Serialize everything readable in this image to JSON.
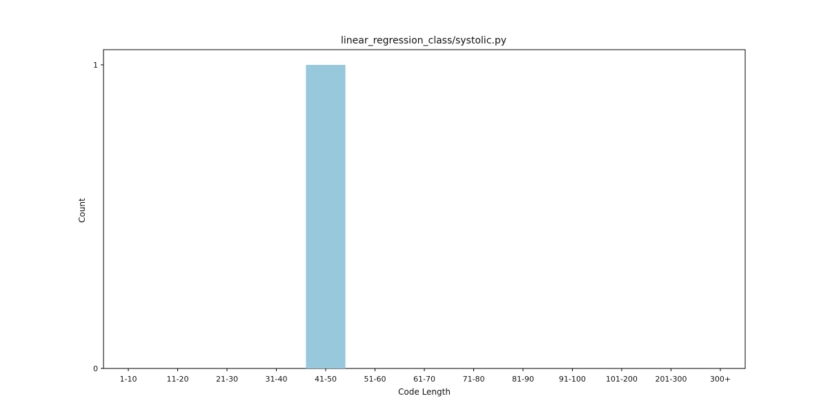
{
  "chart_data": {
    "type": "bar",
    "title": "linear_regression_class/systolic.py",
    "xlabel": "Code Length",
    "ylabel": "Count",
    "categories": [
      "1-10",
      "11-20",
      "21-30",
      "31-40",
      "41-50",
      "51-60",
      "61-70",
      "71-80",
      "81-90",
      "91-100",
      "101-200",
      "201-300",
      "300+"
    ],
    "values": [
      0,
      0,
      0,
      0,
      1,
      0,
      0,
      0,
      0,
      0,
      0,
      0,
      0
    ],
    "ylim": [
      0,
      1
    ],
    "yticks": [
      0,
      1
    ],
    "grid": false,
    "bar_color": "#97c8dc"
  }
}
